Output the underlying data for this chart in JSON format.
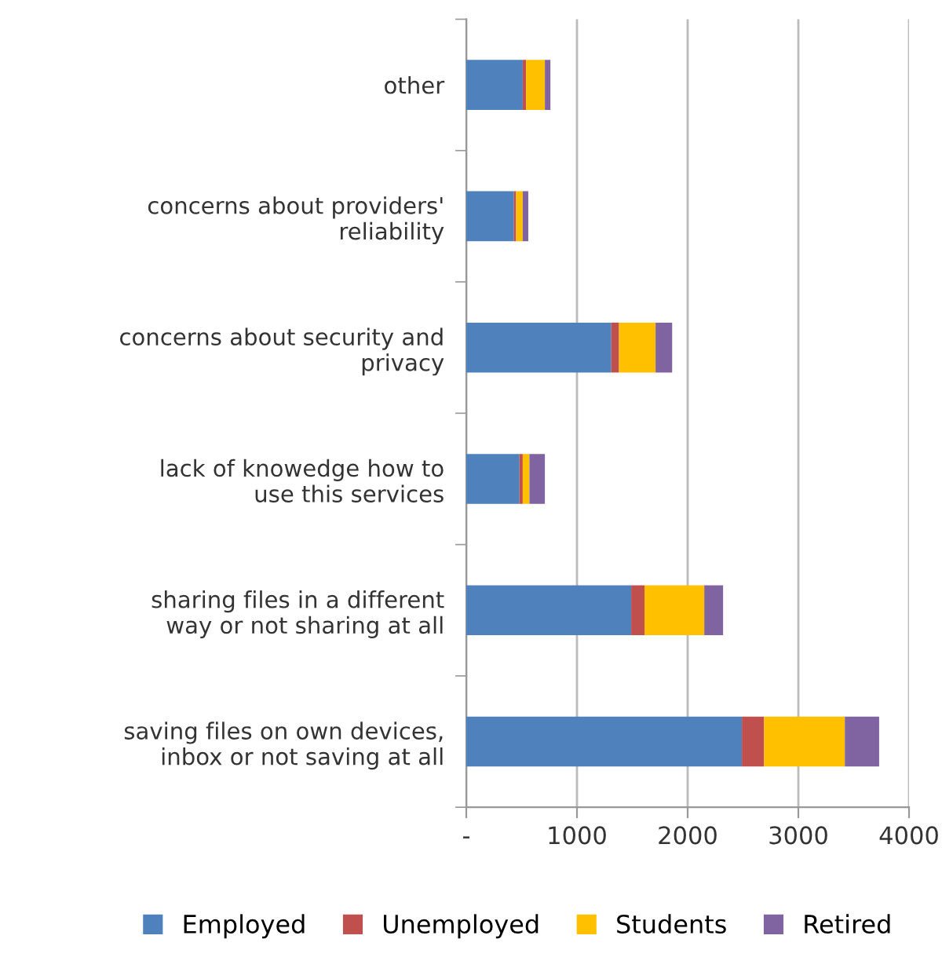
{
  "chart_data": {
    "type": "bar",
    "orientation": "horizontal",
    "stacked": true,
    "categories": [
      "other",
      "concerns about providers'\nreliability",
      "concerns about security and\nprivacy",
      "lack of knowedge how to\nuse this services",
      "sharing files in a different\nway or not sharing at all",
      "saving files on own devices,\ninbox or not saving at all"
    ],
    "series": [
      {
        "name": "Employed",
        "color": "#4f81bd",
        "values": [
          510,
          430,
          1310,
          480,
          1490,
          2490
        ]
      },
      {
        "name": "Unemployed",
        "color": "#c0504d",
        "values": [
          30,
          20,
          70,
          30,
          120,
          200
        ]
      },
      {
        "name": "Students",
        "color": "#ffc000",
        "values": [
          170,
          60,
          330,
          60,
          540,
          730
        ]
      },
      {
        "name": "Retired",
        "color": "#8064a2",
        "values": [
          50,
          50,
          150,
          140,
          170,
          310
        ]
      }
    ],
    "xlim": [
      0,
      4000
    ],
    "xticks": [
      {
        "value": 0,
        "label": "-"
      },
      1000,
      2000,
      3000,
      4000
    ],
    "grid": "x",
    "legend": "bottom"
  }
}
